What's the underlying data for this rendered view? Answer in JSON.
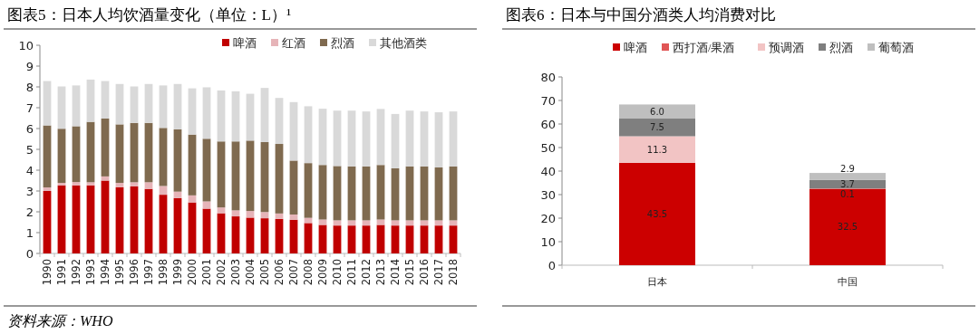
{
  "chart_data": [
    {
      "type": "bar",
      "stacked": true,
      "title": "图表5：日本人均饮酒量变化（单位：L）¹",
      "annotations": [
        "资料来源：WHO"
      ],
      "legend": "top",
      "grid": false,
      "categories": [
        "1990",
        "1991",
        "1992",
        "1993",
        "1994",
        "1995",
        "1996",
        "1997",
        "1998",
        "1999",
        "2000",
        "2001",
        "2002",
        "2003",
        "2004",
        "2005",
        "2006",
        "2007",
        "2008",
        "2009",
        "2010",
        "2011",
        "2012",
        "2013",
        "2014",
        "2015",
        "2016",
        "2017",
        "2018"
      ],
      "ylim": [
        0,
        10
      ],
      "yticks": [
        0,
        1,
        2,
        3,
        4,
        5,
        6,
        7,
        8,
        9,
        10
      ],
      "series": [
        {
          "name": "啤酒",
          "color": "#c00000",
          "values": [
            3.0,
            3.27,
            3.27,
            3.27,
            3.5,
            3.18,
            3.22,
            3.1,
            2.82,
            2.66,
            2.45,
            2.15,
            1.93,
            1.78,
            1.72,
            1.69,
            1.66,
            1.62,
            1.46,
            1.37,
            1.34,
            1.34,
            1.34,
            1.37,
            1.34,
            1.34,
            1.34,
            1.34,
            1.34
          ]
        },
        {
          "name": "红酒",
          "color": "#e6b4b8",
          "values": [
            0.17,
            0.12,
            0.16,
            0.15,
            0.2,
            0.21,
            0.2,
            0.32,
            0.42,
            0.31,
            0.34,
            0.35,
            0.28,
            0.29,
            0.32,
            0.3,
            0.26,
            0.25,
            0.25,
            0.26,
            0.25,
            0.25,
            0.25,
            0.26,
            0.25,
            0.25,
            0.25,
            0.25,
            0.25
          ]
        },
        {
          "name": "烈酒",
          "color": "#7f6a4f",
          "values": [
            2.98,
            2.6,
            2.68,
            2.9,
            2.78,
            2.81,
            2.85,
            2.85,
            2.79,
            2.99,
            2.92,
            3.01,
            3.17,
            3.31,
            3.38,
            3.36,
            3.34,
            2.59,
            2.63,
            2.62,
            2.61,
            2.59,
            2.59,
            2.62,
            2.5,
            2.59,
            2.59,
            2.54,
            2.59
          ]
        },
        {
          "name": "其他酒类",
          "color": "#d9d9d9",
          "values": [
            2.13,
            2.03,
            1.96,
            2.03,
            1.8,
            1.94,
            1.75,
            1.87,
            2.04,
            2.18,
            2.22,
            2.47,
            2.45,
            2.41,
            2.25,
            2.6,
            2.21,
            2.81,
            2.73,
            2.7,
            2.66,
            2.68,
            2.64,
            2.69,
            2.61,
            2.68,
            2.64,
            2.65,
            2.64
          ]
        }
      ]
    },
    {
      "type": "bar",
      "stacked": true,
      "title": "图表6：日本与中国分酒类人均消费对比",
      "legend": "top",
      "grid": false,
      "categories": [
        "日本",
        "中国"
      ],
      "ylim": [
        0,
        80
      ],
      "yticks": [
        0,
        10,
        20,
        30,
        40,
        50,
        60,
        70,
        80
      ],
      "series": [
        {
          "name": "啤酒",
          "color": "#cc0000",
          "values": [
            43.5,
            32.5
          ],
          "value_labels": [
            "43.5",
            "32.5"
          ]
        },
        {
          "name": "西打酒/果酒",
          "color": "#e05555",
          "values": [
            null,
            null
          ]
        },
        {
          "name": "预调酒",
          "color": "#f2c4c4",
          "values": [
            11.3,
            0.1
          ],
          "value_labels": [
            "11.3",
            "0.1"
          ]
        },
        {
          "name": "烈酒",
          "color": "#7f7f7f",
          "values": [
            7.5,
            3.7
          ],
          "value_labels": [
            "7.5",
            "3.7"
          ]
        },
        {
          "name": "葡萄酒",
          "color": "#bfbfbf",
          "values": [
            6.0,
            2.9
          ],
          "value_labels": [
            "6.0",
            "2.9"
          ]
        }
      ]
    }
  ]
}
